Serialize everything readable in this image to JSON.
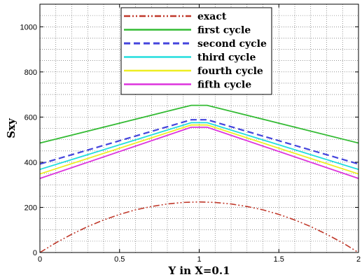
{
  "chart_data": {
    "type": "line",
    "title": "",
    "xlabel": "Y in X=0.1",
    "ylabel": "Sxy",
    "xlim": [
      0,
      2
    ],
    "ylim": [
      0,
      1100
    ],
    "x_ticks": [
      0,
      0.5,
      1,
      1.5,
      2
    ],
    "x_tick_labels": [
      "0",
      "0.5",
      "1",
      "1.5",
      "2"
    ],
    "y_ticks": [
      0,
      200,
      400,
      600,
      800,
      1000
    ],
    "y_tick_labels": [
      "0",
      "200",
      "400",
      "600",
      "800",
      "1000"
    ],
    "grid": true,
    "legend_position": "top-center",
    "series": [
      {
        "name": "exact",
        "color": "#c0392b",
        "style": "dash-dot-dot",
        "x": [
          0,
          0.1,
          0.2,
          0.3,
          0.4,
          0.5,
          0.6,
          0.7,
          0.8,
          0.9,
          1.0,
          1.1,
          1.2,
          1.3,
          1.4,
          1.5,
          1.6,
          1.7,
          1.8,
          1.9,
          2.0
        ],
        "y": [
          0,
          43,
          81,
          115,
          144,
          169,
          189,
          204,
          215,
          222,
          224,
          222,
          215,
          204,
          189,
          169,
          144,
          115,
          81,
          43,
          0
        ]
      },
      {
        "name": "first cycle",
        "color": "#33bb33",
        "style": "solid",
        "x": [
          0,
          0.95,
          1.05,
          2.0
        ],
        "y": [
          485,
          652,
          652,
          485
        ]
      },
      {
        "name": "second cycle",
        "color": "#4444dd",
        "style": "dashed",
        "x": [
          0,
          0.95,
          1.05,
          2.0
        ],
        "y": [
          392,
          588,
          588,
          392
        ]
      },
      {
        "name": "third cycle",
        "color": "#22dddd",
        "style": "solid",
        "x": [
          0,
          0.95,
          1.05,
          2.0
        ],
        "y": [
          368,
          575,
          575,
          368
        ]
      },
      {
        "name": "fourth cycle",
        "color": "#eeee22",
        "style": "solid",
        "x": [
          0,
          0.95,
          1.05,
          2.0
        ],
        "y": [
          348,
          565,
          565,
          348
        ]
      },
      {
        "name": "fifth cycle",
        "color": "#dd33dd",
        "style": "solid",
        "x": [
          0,
          0.95,
          1.05,
          2.0
        ],
        "y": [
          328,
          555,
          555,
          328
        ]
      }
    ]
  }
}
